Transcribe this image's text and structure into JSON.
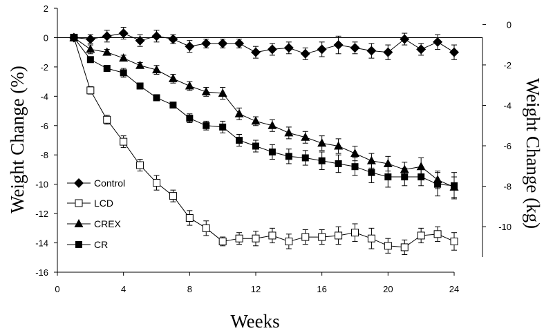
{
  "chart_data": {
    "type": "line",
    "title": "",
    "xlabel": "Weeks",
    "ylabel": "Weight Change (%)",
    "y2label": "Weight Change (kg)",
    "xlim": [
      0,
      24
    ],
    "ylim": [
      -16,
      2
    ],
    "y2lim": [
      -11.5,
      0.8
    ],
    "xticks": [
      0,
      4,
      8,
      12,
      16,
      20,
      24
    ],
    "yticks": [
      2,
      0,
      -2,
      -4,
      -6,
      -8,
      -10,
      -12,
      -14,
      -16
    ],
    "y2ticks": [
      0,
      -2,
      -4,
      -6,
      -8,
      -10
    ],
    "x_tick_labels": [
      "0",
      "4",
      "8",
      "12",
      "16",
      "20",
      "24"
    ],
    "y_tick_labels": [
      "2",
      "0",
      "-2",
      "-4",
      "-6",
      "-8",
      "-10",
      "-12",
      "-14",
      "-16"
    ],
    "y2_tick_labels": [
      "0",
      "-2",
      "-4",
      "-6",
      "-8",
      "-10"
    ],
    "grid": false,
    "legend_position": "bottom-left",
    "x": [
      1,
      2,
      3,
      4,
      5,
      6,
      7,
      8,
      9,
      10,
      11,
      12,
      13,
      14,
      15,
      16,
      17,
      18,
      19,
      20,
      21,
      22,
      23,
      24
    ],
    "series": [
      {
        "name": "Control",
        "marker": "diamond",
        "values": [
          0,
          -0.1,
          0.1,
          0.3,
          -0.2,
          0.1,
          -0.1,
          -0.6,
          -0.4,
          -0.4,
          -0.4,
          -1.0,
          -0.8,
          -0.7,
          -1.1,
          -0.8,
          -0.5,
          -0.7,
          -0.9,
          -1.0,
          -0.1,
          -0.8,
          -0.3,
          -1.0
        ],
        "errors": [
          0.1,
          0.3,
          0.4,
          0.4,
          0.4,
          0.4,
          0.3,
          0.4,
          0.3,
          0.3,
          0.3,
          0.4,
          0.4,
          0.4,
          0.4,
          0.5,
          0.6,
          0.4,
          0.5,
          0.5,
          0.4,
          0.4,
          0.5,
          0.5
        ]
      },
      {
        "name": "LCD",
        "marker": "square-open",
        "values": [
          0,
          -3.6,
          -5.6,
          -7.1,
          -8.7,
          -9.9,
          -10.8,
          -12.3,
          -13.0,
          -13.9,
          -13.7,
          -13.7,
          -13.5,
          -13.9,
          -13.6,
          -13.6,
          -13.5,
          -13.3,
          -13.7,
          -14.2,
          -14.3,
          -13.5,
          -13.4,
          -13.9
        ],
        "errors": [
          0.1,
          0.25,
          0.3,
          0.4,
          0.4,
          0.5,
          0.4,
          0.5,
          0.5,
          0.3,
          0.4,
          0.5,
          0.5,
          0.5,
          0.5,
          0.5,
          0.6,
          0.6,
          0.7,
          0.5,
          0.5,
          0.5,
          0.5,
          0.6
        ]
      },
      {
        "name": "CREX",
        "marker": "triangle",
        "values": [
          0,
          -0.8,
          -1.0,
          -1.4,
          -1.9,
          -2.2,
          -2.8,
          -3.3,
          -3.7,
          -3.8,
          -5.2,
          -5.7,
          -6.0,
          -6.5,
          -6.8,
          -7.2,
          -7.4,
          -7.9,
          -8.4,
          -8.6,
          -9.0,
          -8.8,
          -9.7,
          -10.2
        ],
        "errors": [
          0.1,
          0.3,
          0.2,
          0.2,
          0.2,
          0.3,
          0.3,
          0.3,
          0.3,
          0.4,
          0.4,
          0.3,
          0.4,
          0.4,
          0.4,
          0.5,
          0.5,
          0.5,
          0.5,
          0.5,
          0.5,
          0.6,
          0.6,
          0.7
        ]
      },
      {
        "name": "CR",
        "marker": "square",
        "values": [
          0,
          -1.5,
          -2.1,
          -2.4,
          -3.3,
          -4.1,
          -4.6,
          -5.5,
          -6.0,
          -6.1,
          -7.0,
          -7.4,
          -7.8,
          -8.1,
          -8.2,
          -8.4,
          -8.6,
          -8.8,
          -9.2,
          -9.5,
          -9.5,
          -9.5,
          -10.0,
          -10.1
        ],
        "errors": [
          0.1,
          0.2,
          0.2,
          0.3,
          0.2,
          0.2,
          0.2,
          0.3,
          0.3,
          0.4,
          0.4,
          0.4,
          0.5,
          0.5,
          0.5,
          0.6,
          0.6,
          0.6,
          0.7,
          0.7,
          0.6,
          0.6,
          0.8,
          0.9
        ]
      }
    ]
  }
}
